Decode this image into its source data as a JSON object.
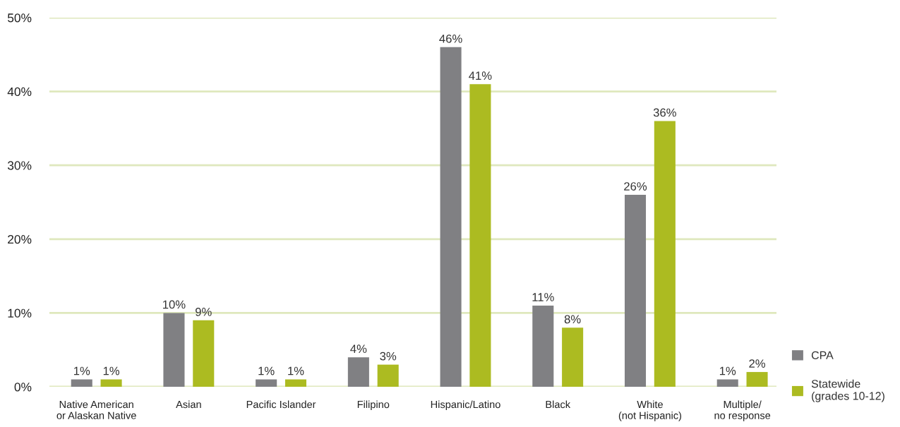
{
  "chart_data": {
    "type": "bar",
    "categories": [
      "Native American\nor Alaskan Native",
      "Asian",
      "Pacific Islander",
      "Filipino",
      "Hispanic/Latino",
      "Black",
      "White\n(not Hispanic)",
      "Multiple/\nno response"
    ],
    "series": [
      {
        "name": "CPA",
        "color": "#808083",
        "values": [
          1,
          10,
          1,
          4,
          46,
          11,
          26,
          1
        ],
        "value_labels": [
          "1%",
          "10%",
          "1%",
          "4%",
          "46%",
          "11%",
          "26%",
          "1%"
        ]
      },
      {
        "name": "Statewide\n(grades 10-12)",
        "color": "#acbb21",
        "values": [
          1,
          9,
          1,
          3,
          41,
          8,
          36,
          2
        ],
        "value_labels": [
          "1%",
          "9%",
          "1%",
          "3%",
          "41%",
          "8%",
          "36%",
          "2%"
        ]
      }
    ],
    "ylim": [
      0,
      50
    ],
    "yticks": [
      {
        "value": 0,
        "label": "0%"
      },
      {
        "value": 10,
        "label": "10%"
      },
      {
        "value": 20,
        "label": "20%"
      },
      {
        "value": 30,
        "label": "30%"
      },
      {
        "value": 40,
        "label": "40%"
      },
      {
        "value": 50,
        "label": "50%"
      }
    ],
    "grid": "y",
    "legend": "bottom right"
  }
}
